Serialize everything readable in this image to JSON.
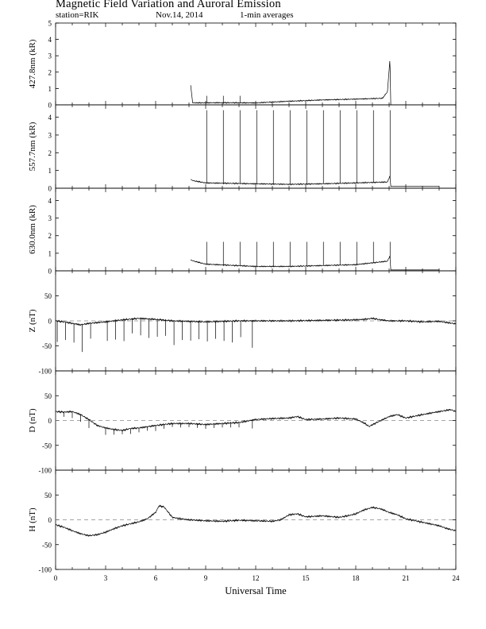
{
  "header": {
    "title": "Magnetic Field Variation and Auroral Emission",
    "station": "station=RIK",
    "date": "Nov.14, 2014",
    "averaging": "1-min averages"
  },
  "chart_data": [
    {
      "type": "line",
      "ylabel": "427.8nm (kR)",
      "ylim": [
        0,
        5
      ],
      "yticks": [
        0,
        1,
        2,
        3,
        4,
        5
      ],
      "xlim": [
        0,
        24
      ],
      "data_start_h": 8.1,
      "data_end_h": 20.1,
      "baseline": [
        [
          8.1,
          0.12
        ],
        [
          10,
          0.13
        ],
        [
          12,
          0.12
        ],
        [
          14,
          0.22
        ],
        [
          16,
          0.3
        ],
        [
          18,
          0.35
        ],
        [
          19.6,
          0.4
        ],
        [
          19.9,
          0.8
        ],
        [
          20.05,
          2.8
        ],
        [
          20.1,
          0.0
        ]
      ],
      "start_peak": 1.2,
      "spike_times": [
        9.05,
        10.05,
        11.05
      ],
      "spike_height": 0.55,
      "flat_after_data": null,
      "dashed_zero": false
    },
    {
      "type": "line",
      "ylabel": "557.7nm (kR)",
      "ylim": [
        0,
        4.7
      ],
      "yticks": [
        0,
        1,
        2,
        3,
        4
      ],
      "xlim": [
        0,
        24
      ],
      "data_start_h": 8.1,
      "data_end_h": 20.1,
      "baseline": [
        [
          8.1,
          0.45
        ],
        [
          9,
          0.3
        ],
        [
          12,
          0.25
        ],
        [
          14,
          0.22
        ],
        [
          16,
          0.25
        ],
        [
          18,
          0.3
        ],
        [
          19.9,
          0.35
        ],
        [
          20.05,
          0.7
        ],
        [
          20.1,
          0.1
        ]
      ],
      "start_peak": 0.5,
      "spike_times": [
        9.05,
        10.05,
        11.05,
        12.05,
        13.05,
        14.05,
        15.05,
        16.05,
        17.05,
        18.05,
        19.05,
        20.05
      ],
      "spike_height": 4.4,
      "flat_after_data": {
        "value": 0.1,
        "end_h": 23
      },
      "dashed_zero": false
    },
    {
      "type": "line",
      "ylabel": "630.0nm (kR)",
      "ylim": [
        0,
        4.7
      ],
      "yticks": [
        0,
        1,
        2,
        3,
        4
      ],
      "xlim": [
        0,
        24
      ],
      "data_start_h": 8.1,
      "data_end_h": 20.1,
      "baseline": [
        [
          8.1,
          0.6
        ],
        [
          9,
          0.38
        ],
        [
          12,
          0.25
        ],
        [
          14,
          0.25
        ],
        [
          16,
          0.3
        ],
        [
          18,
          0.35
        ],
        [
          19.9,
          0.55
        ],
        [
          20.05,
          0.85
        ],
        [
          20.1,
          0.05
        ]
      ],
      "start_peak": 0.6,
      "spike_times": [
        9.05,
        10.05,
        11.05,
        12.05,
        13.05,
        14.05,
        15.05,
        16.05,
        17.05,
        18.05,
        19.05,
        20.05
      ],
      "spike_height": 1.65,
      "flat_after_data": {
        "value": 0.05,
        "end_h": 23
      },
      "dashed_zero": false
    },
    {
      "type": "line",
      "ylabel": "Z (nT)",
      "ylim": [
        -100,
        100
      ],
      "yticks": [
        -100,
        -50,
        0,
        50
      ],
      "xlim": [
        0,
        24
      ],
      "baseline": [
        [
          0,
          0
        ],
        [
          0.5,
          -2
        ],
        [
          1,
          -5
        ],
        [
          1.5,
          -8
        ],
        [
          2,
          -5
        ],
        [
          3,
          -2
        ],
        [
          4,
          2
        ],
        [
          5,
          5
        ],
        [
          6,
          3
        ],
        [
          7,
          0
        ],
        [
          8,
          -1
        ],
        [
          9,
          -2
        ],
        [
          10,
          -1
        ],
        [
          11,
          0
        ],
        [
          12,
          0
        ],
        [
          14,
          0
        ],
        [
          16,
          1
        ],
        [
          18,
          2
        ],
        [
          18.5,
          3
        ],
        [
          19,
          5
        ],
        [
          19.5,
          2
        ],
        [
          20,
          0
        ],
        [
          21,
          0
        ],
        [
          22,
          -2
        ],
        [
          23,
          -1
        ],
        [
          24,
          -6
        ]
      ],
      "spike_times": [
        0.1,
        0.6,
        1.1,
        1.6,
        2.1,
        3.1,
        3.6,
        4.1,
        4.6,
        5.1,
        5.6,
        6.1,
        6.6,
        7.1,
        7.6,
        8.1,
        8.6,
        9.1,
        9.6,
        10.1,
        10.6,
        11.1,
        11.8
      ],
      "spike_depths": [
        -42,
        -35,
        -38,
        -55,
        -30,
        -40,
        -38,
        -42,
        -30,
        -35,
        -38,
        -35,
        -32,
        -48,
        -38,
        -40,
        -35,
        -38,
        -35,
        -40,
        -42,
        -32,
        -55
      ],
      "dashed_zero": true
    },
    {
      "type": "line",
      "ylabel": "D (nT)",
      "ylim": [
        -100,
        100
      ],
      "yticks": [
        -100,
        -50,
        0,
        50
      ],
      "xlim": [
        0,
        24
      ],
      "baseline": [
        [
          0,
          18
        ],
        [
          0.5,
          17
        ],
        [
          1,
          18
        ],
        [
          1.5,
          12
        ],
        [
          2,
          2
        ],
        [
          2.5,
          -10
        ],
        [
          3,
          -15
        ],
        [
          3.5,
          -18
        ],
        [
          4,
          -20
        ],
        [
          4.5,
          -16
        ],
        [
          5,
          -15
        ],
        [
          6,
          -10
        ],
        [
          7,
          -6
        ],
        [
          8,
          -6
        ],
        [
          9,
          -8
        ],
        [
          10,
          -6
        ],
        [
          11,
          -4
        ],
        [
          12,
          2
        ],
        [
          13,
          4
        ],
        [
          14,
          5
        ],
        [
          14.5,
          8
        ],
        [
          15,
          2
        ],
        [
          16,
          3
        ],
        [
          17,
          5
        ],
        [
          18,
          3
        ],
        [
          18.5,
          -5
        ],
        [
          18.8,
          -12
        ],
        [
          19.2,
          -5
        ],
        [
          20,
          8
        ],
        [
          20.5,
          12
        ],
        [
          21,
          5
        ],
        [
          22,
          12
        ],
        [
          23,
          18
        ],
        [
          23.7,
          22
        ],
        [
          24,
          18
        ]
      ],
      "spike_times": [
        0.5,
        1.0,
        1.5,
        2.0,
        3.0,
        3.5,
        4.0,
        4.5,
        5.0,
        5.5,
        6.0,
        6.5,
        7.0,
        7.5,
        8.0,
        8.5,
        9.0,
        9.5,
        10.0,
        10.5,
        11.0,
        11.8
      ],
      "spike_depths": [
        -10,
        -12,
        -14,
        -18,
        -12,
        -10,
        -8,
        -10,
        -8,
        -8,
        -10,
        -8,
        -8,
        -8,
        -6,
        -8,
        -10,
        -8,
        -8,
        -10,
        -10,
        -18
      ],
      "dashed_zero": true
    },
    {
      "type": "line",
      "ylabel": "H (nT)",
      "ylim": [
        -100,
        100
      ],
      "yticks": [
        -100,
        -50,
        0,
        50
      ],
      "xlim": [
        0,
        24
      ],
      "xticks": [
        0,
        3,
        6,
        9,
        12,
        15,
        18,
        21,
        24
      ],
      "xlabel": "Universal Time",
      "baseline": [
        [
          0,
          -10
        ],
        [
          0.5,
          -15
        ],
        [
          1,
          -22
        ],
        [
          1.5,
          -28
        ],
        [
          2,
          -32
        ],
        [
          2.5,
          -30
        ],
        [
          3,
          -25
        ],
        [
          3.5,
          -18
        ],
        [
          4,
          -12
        ],
        [
          4.5,
          -8
        ],
        [
          5,
          -4
        ],
        [
          5.5,
          2
        ],
        [
          6,
          15
        ],
        [
          6.2,
          28
        ],
        [
          6.5,
          26
        ],
        [
          7,
          5
        ],
        [
          7.5,
          2
        ],
        [
          8,
          0
        ],
        [
          9,
          -2
        ],
        [
          10,
          -3
        ],
        [
          11,
          -1
        ],
        [
          12,
          -2
        ],
        [
          13,
          -3
        ],
        [
          13.5,
          0
        ],
        [
          14,
          10
        ],
        [
          14.5,
          12
        ],
        [
          15,
          6
        ],
        [
          16,
          8
        ],
        [
          17,
          5
        ],
        [
          17.5,
          8
        ],
        [
          18,
          12
        ],
        [
          18.5,
          20
        ],
        [
          19,
          25
        ],
        [
          19.5,
          22
        ],
        [
          20,
          15
        ],
        [
          20.5,
          10
        ],
        [
          21,
          2
        ],
        [
          22,
          -5
        ],
        [
          23,
          -12
        ],
        [
          23.5,
          -18
        ],
        [
          24,
          -22
        ]
      ],
      "spike_times": [],
      "spike_depths": [],
      "dashed_zero": true
    }
  ]
}
